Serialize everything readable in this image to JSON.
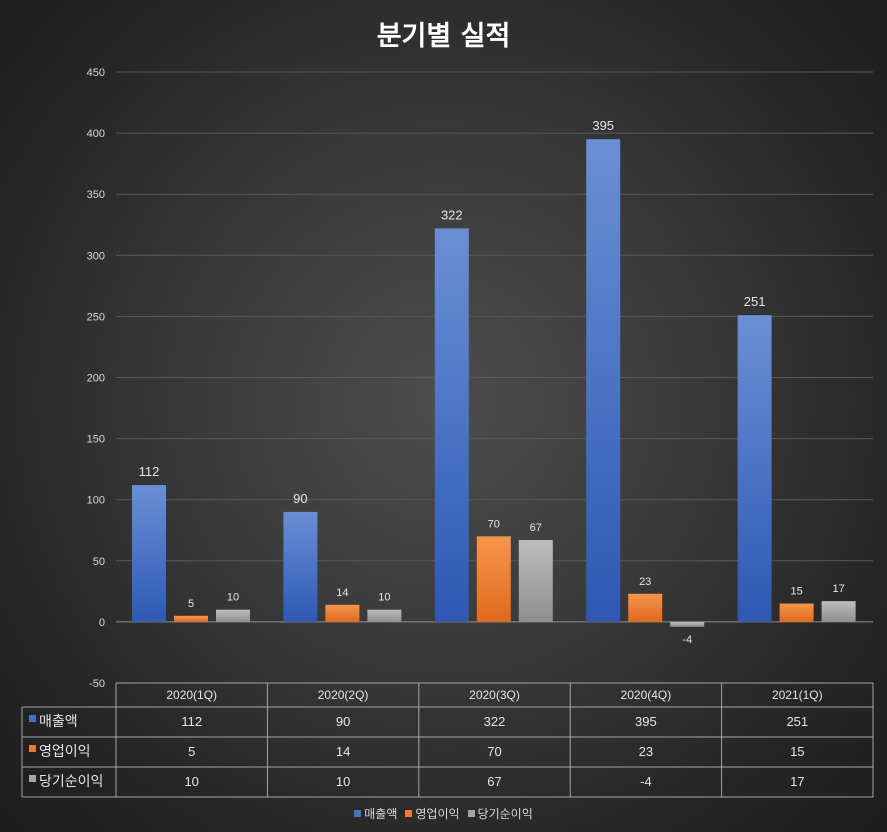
{
  "chart_data": {
    "type": "bar",
    "title": "분기별 실적",
    "categories": [
      "2020(1Q)",
      "2020(2Q)",
      "2020(3Q)",
      "2020(4Q)",
      "2021(1Q)"
    ],
    "series": [
      {
        "name": "매출액",
        "color": "#4472c4",
        "values": [
          112,
          90,
          322,
          395,
          251
        ]
      },
      {
        "name": "영업이익",
        "color": "#ed7d31",
        "values": [
          5,
          14,
          70,
          23,
          15
        ]
      },
      {
        "name": "당기순이익",
        "color": "#a5a5a5",
        "values": [
          10,
          10,
          67,
          -4,
          17
        ]
      }
    ],
    "ylim": [
      -50,
      450
    ],
    "yticks": [
      "-50",
      "0",
      "50",
      "100",
      "150",
      "200",
      "250",
      "300",
      "350",
      "400",
      "450"
    ],
    "grid": true,
    "legend": "bottom",
    "data_table": true
  }
}
